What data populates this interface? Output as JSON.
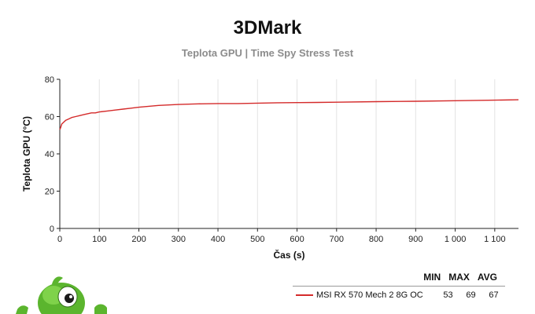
{
  "chart_data": {
    "type": "line",
    "title": "3DMark",
    "subtitle": "Teplota GPU | Time Spy Stress Test",
    "xlabel": "Čas (s)",
    "ylabel": "Teplota GPU (°C)",
    "xlim": [
      0,
      1160
    ],
    "ylim": [
      0,
      80
    ],
    "xticks": [
      0,
      100,
      200,
      300,
      400,
      500,
      600,
      700,
      800,
      900,
      1000,
      1100
    ],
    "xtick_labels": [
      "0",
      "100",
      "200",
      "300",
      "400",
      "500",
      "600",
      "700",
      "800",
      "900",
      "1 000",
      "1 100"
    ],
    "yticks": [
      0,
      20,
      40,
      60,
      80
    ],
    "ytick_labels": [
      "0",
      "20",
      "40",
      "60",
      "80"
    ],
    "grid": "vertical",
    "legend_position": "bottom-right",
    "series": [
      {
        "name": "MSI RX 570 Mech 2 8G OC",
        "color": "#d42a2a",
        "min": "53",
        "max": "69",
        "avg": "67",
        "x": [
          0,
          2,
          5,
          10,
          15,
          20,
          30,
          40,
          50,
          60,
          70,
          80,
          90,
          100,
          120,
          140,
          160,
          180,
          200,
          250,
          300,
          350,
          400,
          450,
          500,
          550,
          600,
          650,
          700,
          800,
          900,
          1000,
          1100,
          1160
        ],
        "y": [
          53,
          54,
          56,
          57,
          58,
          58.5,
          59.5,
          60,
          60.5,
          61,
          61.5,
          62,
          62,
          62.5,
          63,
          63.5,
          64,
          64.5,
          65,
          66,
          66.5,
          66.8,
          67,
          67,
          67.2,
          67.4,
          67.5,
          67.6,
          67.7,
          68,
          68.2,
          68.5,
          68.8,
          69
        ]
      }
    ]
  },
  "legend": {
    "headers": {
      "min": "MIN",
      "max": "MAX",
      "avg": "AVG"
    }
  }
}
